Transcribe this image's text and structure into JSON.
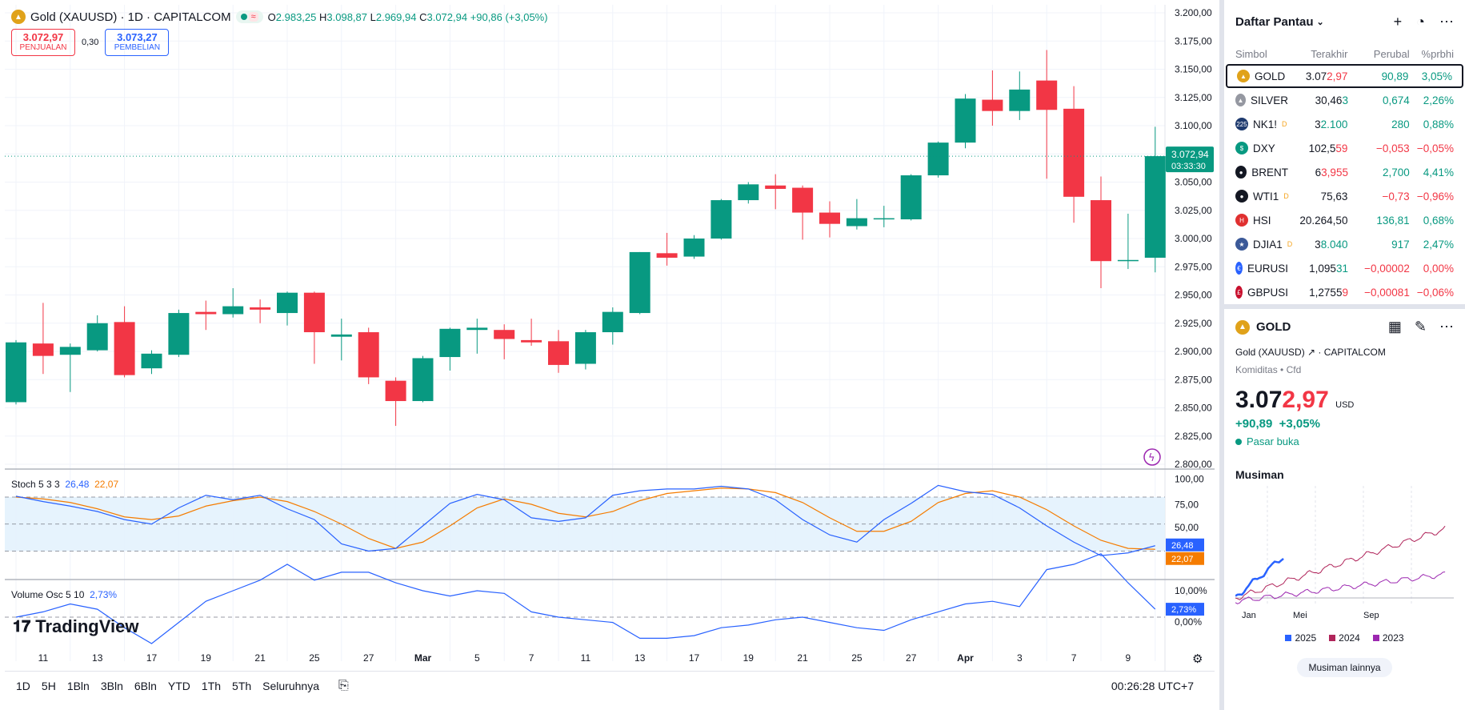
{
  "chart_header": {
    "title": "Gold (XAUUSD) · 1D · CAPITALCOM",
    "open_label": "O",
    "open": "2.983,25",
    "high_label": "H",
    "high": "3.098,87",
    "low_label": "L",
    "low": "2.969,94",
    "close_label": "C",
    "close": "3.072,94",
    "change": "+90,86 (+3,05%)"
  },
  "bid_ask": {
    "sell_price": "3.072,97",
    "sell_label": "PENJUALAN",
    "spread": "0,30",
    "buy_price": "3.073,27",
    "buy_label": "PEMBELIAN"
  },
  "chart_data": [
    {
      "type": "candlestick",
      "title": "Gold (XAUUSD) · 1D · CAPITALCOM",
      "ylim": [
        2800,
        3200
      ],
      "y_ticks": [
        "3.200,00",
        "3.175,00",
        "3.150,00",
        "3.125,00",
        "3.100,00",
        "3.075,00",
        "3.050,00",
        "3.025,00",
        "3.000,00",
        "2.975,00",
        "2.950,00",
        "2.925,00",
        "2.900,00",
        "2.875,00",
        "2.850,00",
        "2.825,00",
        "2.800,00"
      ],
      "x_ticks": [
        "11",
        "13",
        "17",
        "19",
        "21",
        "25",
        "27",
        "Mar",
        "5",
        "7",
        "11",
        "13",
        "17",
        "19",
        "21",
        "25",
        "27",
        "Apr",
        "3",
        "7",
        "9"
      ],
      "price_tag": "3.072,94",
      "countdown_tag": "03:33:30",
      "candles": [
        {
          "o": 2855,
          "h": 2910,
          "l": 2853,
          "c": 2908
        },
        {
          "o": 2907,
          "h": 2943,
          "l": 2880,
          "c": 2896
        },
        {
          "o": 2897,
          "h": 2907,
          "l": 2864,
          "c": 2904
        },
        {
          "o": 2901,
          "h": 2932,
          "l": 2900,
          "c": 2925
        },
        {
          "o": 2926,
          "h": 2940,
          "l": 2877,
          "c": 2879
        },
        {
          "o": 2885,
          "h": 2901,
          "l": 2880,
          "c": 2898
        },
        {
          "o": 2897,
          "h": 2937,
          "l": 2895,
          "c": 2934
        },
        {
          "o": 2935,
          "h": 2945,
          "l": 2919,
          "c": 2933
        },
        {
          "o": 2933,
          "h": 2956,
          "l": 2930,
          "c": 2940
        },
        {
          "o": 2939,
          "h": 2946,
          "l": 2925,
          "c": 2937
        },
        {
          "o": 2934,
          "h": 2953,
          "l": 2923,
          "c": 2952
        },
        {
          "o": 2952,
          "h": 2953,
          "l": 2889,
          "c": 2917
        },
        {
          "o": 2913,
          "h": 2929,
          "l": 2892,
          "c": 2915
        },
        {
          "o": 2917,
          "h": 2921,
          "l": 2871,
          "c": 2877
        },
        {
          "o": 2874,
          "h": 2877,
          "l": 2834,
          "c": 2856
        },
        {
          "o": 2856,
          "h": 2896,
          "l": 2855,
          "c": 2894
        },
        {
          "o": 2895,
          "h": 2921,
          "l": 2883,
          "c": 2920
        },
        {
          "o": 2919,
          "h": 2929,
          "l": 2898,
          "c": 2921
        },
        {
          "o": 2919,
          "h": 2924,
          "l": 2893,
          "c": 2911
        },
        {
          "o": 2910,
          "h": 2929,
          "l": 2905,
          "c": 2908
        },
        {
          "o": 2909,
          "h": 2919,
          "l": 2881,
          "c": 2888
        },
        {
          "o": 2889,
          "h": 2919,
          "l": 2884,
          "c": 2917
        },
        {
          "o": 2917,
          "h": 2939,
          "l": 2906,
          "c": 2935
        },
        {
          "o": 2934,
          "h": 2988,
          "l": 2933,
          "c": 2988
        },
        {
          "o": 2987,
          "h": 3005,
          "l": 2976,
          "c": 2983
        },
        {
          "o": 2984,
          "h": 3003,
          "l": 2982,
          "c": 3000
        },
        {
          "o": 3000,
          "h": 3035,
          "l": 2999,
          "c": 3034
        },
        {
          "o": 3034,
          "h": 3050,
          "l": 3031,
          "c": 3048
        },
        {
          "o": 3047,
          "h": 3057,
          "l": 3026,
          "c": 3044
        },
        {
          "o": 3045,
          "h": 3047,
          "l": 2999,
          "c": 3023
        },
        {
          "o": 3023,
          "h": 3033,
          "l": 3001,
          "c": 3013
        },
        {
          "o": 3011,
          "h": 3035,
          "l": 3008,
          "c": 3018
        },
        {
          "o": 3018,
          "h": 3029,
          "l": 3010,
          "c": 3018
        },
        {
          "o": 3017,
          "h": 3057,
          "l": 3016,
          "c": 3056
        },
        {
          "o": 3056,
          "h": 3086,
          "l": 3054,
          "c": 3085
        },
        {
          "o": 3085,
          "h": 3128,
          "l": 3080,
          "c": 3124
        },
        {
          "o": 3123,
          "h": 3149,
          "l": 3100,
          "c": 3113
        },
        {
          "o": 3113,
          "h": 3148,
          "l": 3105,
          "c": 3132
        },
        {
          "o": 3140,
          "h": 3167,
          "l": 3053,
          "c": 3114
        },
        {
          "o": 3115,
          "h": 3135,
          "l": 3014,
          "c": 3037
        },
        {
          "o": 3034,
          "h": 3055,
          "l": 2956,
          "c": 2980
        },
        {
          "o": 2981,
          "h": 3022,
          "l": 2973,
          "c": 2981
        },
        {
          "o": 2983,
          "h": 3099,
          "l": 2970,
          "c": 3073
        }
      ]
    },
    {
      "type": "line",
      "title": "Stoch 5 3 3",
      "ylim": [
        0,
        100
      ],
      "y_ticks": [
        "100,00",
        "75,00",
        "50,00"
      ],
      "last_k": "26,48",
      "last_d": "22,07",
      "series": [
        {
          "name": "%K",
          "values": [
            81,
            75,
            70,
            64,
            55,
            50,
            68,
            82,
            77,
            82,
            67,
            55,
            28,
            20,
            23,
            48,
            73,
            83,
            77,
            57,
            53,
            57,
            82,
            87,
            89,
            89,
            92,
            89,
            77,
            55,
            38,
            30,
            55,
            73,
            93,
            86,
            83,
            68,
            48,
            30,
            15,
            18,
            26
          ]
        },
        {
          "name": "%D",
          "values": [
            80,
            78,
            74,
            67,
            58,
            55,
            59,
            70,
            76,
            80,
            75,
            64,
            50,
            34,
            23,
            30,
            48,
            68,
            78,
            72,
            62,
            58,
            64,
            76,
            84,
            87,
            90,
            89,
            85,
            74,
            57,
            42,
            42,
            53,
            74,
            84,
            87,
            80,
            66,
            48,
            32,
            23,
            22
          ]
        }
      ]
    },
    {
      "type": "line",
      "title": "Volume Osc 5 10",
      "y_ticks": [
        "10,00%",
        "0,00%"
      ],
      "last_value": "2,73%",
      "series": [
        {
          "name": "Volume Osc",
          "values": [
            0,
            2,
            5,
            3,
            -4,
            -10,
            -2,
            6,
            10,
            14,
            20,
            14,
            17,
            17,
            13,
            10,
            8,
            10,
            9,
            2,
            0,
            -1,
            -2,
            -8,
            -8,
            -7,
            -4,
            -3,
            -1,
            0,
            -2,
            -4,
            -5,
            -1,
            2,
            5,
            6,
            4,
            18,
            20,
            24,
            13,
            3
          ]
        }
      ]
    }
  ],
  "indicators": {
    "stoch_label": "Stoch 5 3 3",
    "stoch_k": "26,48",
    "stoch_d": "22,07",
    "vol_label": "Volume Osc 5 10",
    "vol_value": "2,73%"
  },
  "branding": {
    "logo_text": "TradingView"
  },
  "timeframes": [
    "1D",
    "5H",
    "1Bln",
    "3Bln",
    "6Bln",
    "YTD",
    "1Th",
    "5Th",
    "Seluruhnya"
  ],
  "clock": "00:26:28 UTC+7",
  "watchlist": {
    "title": "Daftar Pantau",
    "columns": {
      "symbol": "Simbol",
      "last": "Terakhir",
      "change": "Perubal",
      "pct": "%prbhi"
    },
    "rows": [
      {
        "symbol": "GOLD",
        "last_a": "3.07",
        "last_b": "2,97",
        "last_b_color": "#f23645",
        "change": "90,89",
        "pct": "3,05%",
        "dir": "pos",
        "icon_color": "#e0a21a",
        "icon": "▲",
        "dmark": ""
      },
      {
        "symbol": "SILVER",
        "last_a": "30,46",
        "last_b": "3",
        "last_b_color": "#089981",
        "change": "0,674",
        "pct": "2,26%",
        "dir": "pos",
        "icon_color": "#9598a1",
        "icon": "▲",
        "dmark": ""
      },
      {
        "symbol": "NK1!",
        "last_a": "3",
        "last_b": "2.100",
        "last_b_color": "#089981",
        "change": "280",
        "pct": "0,88%",
        "dir": "pos",
        "icon_color": "#1e3a6e",
        "icon": "225",
        "dmark": "D"
      },
      {
        "symbol": "DXY",
        "last_a": "102,5",
        "last_b": "59",
        "last_b_color": "#f23645",
        "change": "−0,053",
        "pct": "−0,05%",
        "dir": "neg",
        "icon_color": "#089981",
        "icon": "$",
        "dmark": ""
      },
      {
        "symbol": "BRENT",
        "last_a": "6",
        "last_b": "3,955",
        "last_b_color": "#f23645",
        "change": "2,700",
        "pct": "4,41%",
        "dir": "pos",
        "icon_color": "#131722",
        "icon": "●",
        "dmark": ""
      },
      {
        "symbol": "WTI1",
        "last_a": "75,63",
        "last_b": "",
        "last_b_color": "#131722",
        "change": "−0,73",
        "pct": "−0,96%",
        "dir": "neg",
        "icon_color": "#131722",
        "icon": "●",
        "dmark": "D"
      },
      {
        "symbol": "HSI",
        "last_a": "20.264,50",
        "last_b": "",
        "last_b_color": "#131722",
        "change": "136,81",
        "pct": "0,68%",
        "dir": "pos",
        "icon_color": "#e03030",
        "icon": "H",
        "dmark": ""
      },
      {
        "symbol": "DJIA1",
        "last_a": "3",
        "last_b": "8.040",
        "last_b_color": "#089981",
        "change": "917",
        "pct": "2,47%",
        "dir": "pos",
        "icon_color": "#3b5998",
        "icon": "★",
        "dmark": "D"
      },
      {
        "symbol": "EURUSI",
        "last_a": "1,095",
        "last_b": "31",
        "last_b_color": "#089981",
        "change": "−0,00002",
        "pct": "0,00%",
        "dir": "neg",
        "icon_color": "#2962ff",
        "icon": "€",
        "dmark": ""
      },
      {
        "symbol": "GBPUSI",
        "last_a": "1,2755",
        "last_b": "9",
        "last_b_color": "#f23645",
        "change": "−0,00081",
        "pct": "−0,06%",
        "dir": "neg",
        "icon_color": "#c8102e",
        "icon": "£",
        "dmark": ""
      }
    ]
  },
  "detail": {
    "symbol": "GOLD",
    "name": "Gold (XAUUSD)",
    "exchange": "CAPITALCOM",
    "category": "Komiditas",
    "category_sub": "Cfd",
    "price_main": "3.07",
    "price_tail": "2,97",
    "currency": "USD",
    "change": "+90,89",
    "change_pct": "+3,05%",
    "status": "Pasar buka",
    "seasonal_title": "Musiman",
    "seasonal_x_ticks": [
      "Jan",
      "Mei",
      "Sep"
    ],
    "seasonal_legend": [
      {
        "label": "2025",
        "color": "#2962ff"
      },
      {
        "label": "2024",
        "color": "#b0245a"
      },
      {
        "label": "2023",
        "color": "#9c27b0"
      }
    ],
    "seasonal_button": "Musiman lainnya"
  },
  "colors": {
    "up": "#089981",
    "down": "#f23645",
    "stoch_k": "#2962ff",
    "stoch_d": "#f57c00",
    "band": "#e3f2fd"
  }
}
